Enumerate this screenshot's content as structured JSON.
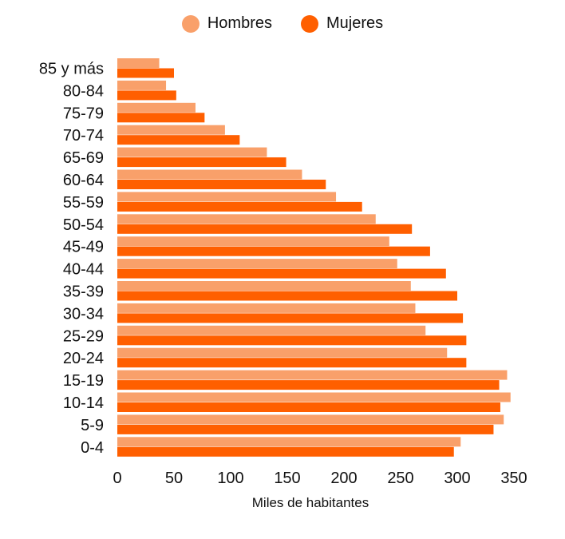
{
  "legend": {
    "men_label": "Hombres",
    "women_label": "Mujeres"
  },
  "colors": {
    "men": "#f9a06a",
    "women": "#ff5f00"
  },
  "chart_data": {
    "type": "bar",
    "orientation": "horizontal",
    "title": "",
    "xlabel": "Miles de habitantes",
    "ylabel": "",
    "xlim": [
      0,
      350
    ],
    "xticks": [
      0,
      50,
      100,
      150,
      200,
      250,
      300,
      350
    ],
    "grid": false,
    "legend_position": "top-center",
    "categories": [
      "85 y más",
      "80-84",
      "75-79",
      "70-74",
      "65-69",
      "60-64",
      "55-59",
      "50-54",
      "45-49",
      "40-44",
      "35-39",
      "30-34",
      "25-29",
      "20-24",
      "15-19",
      "10-14",
      "5-9",
      "0-4"
    ],
    "series": [
      {
        "name": "Hombres",
        "values": [
          37,
          43,
          69,
          95,
          132,
          163,
          193,
          228,
          240,
          247,
          259,
          263,
          272,
          291,
          344,
          347,
          341,
          303
        ]
      },
      {
        "name": "Mujeres",
        "values": [
          50,
          52,
          77,
          108,
          149,
          184,
          216,
          260,
          276,
          290,
          300,
          305,
          308,
          308,
          337,
          338,
          332,
          297
        ]
      }
    ]
  }
}
